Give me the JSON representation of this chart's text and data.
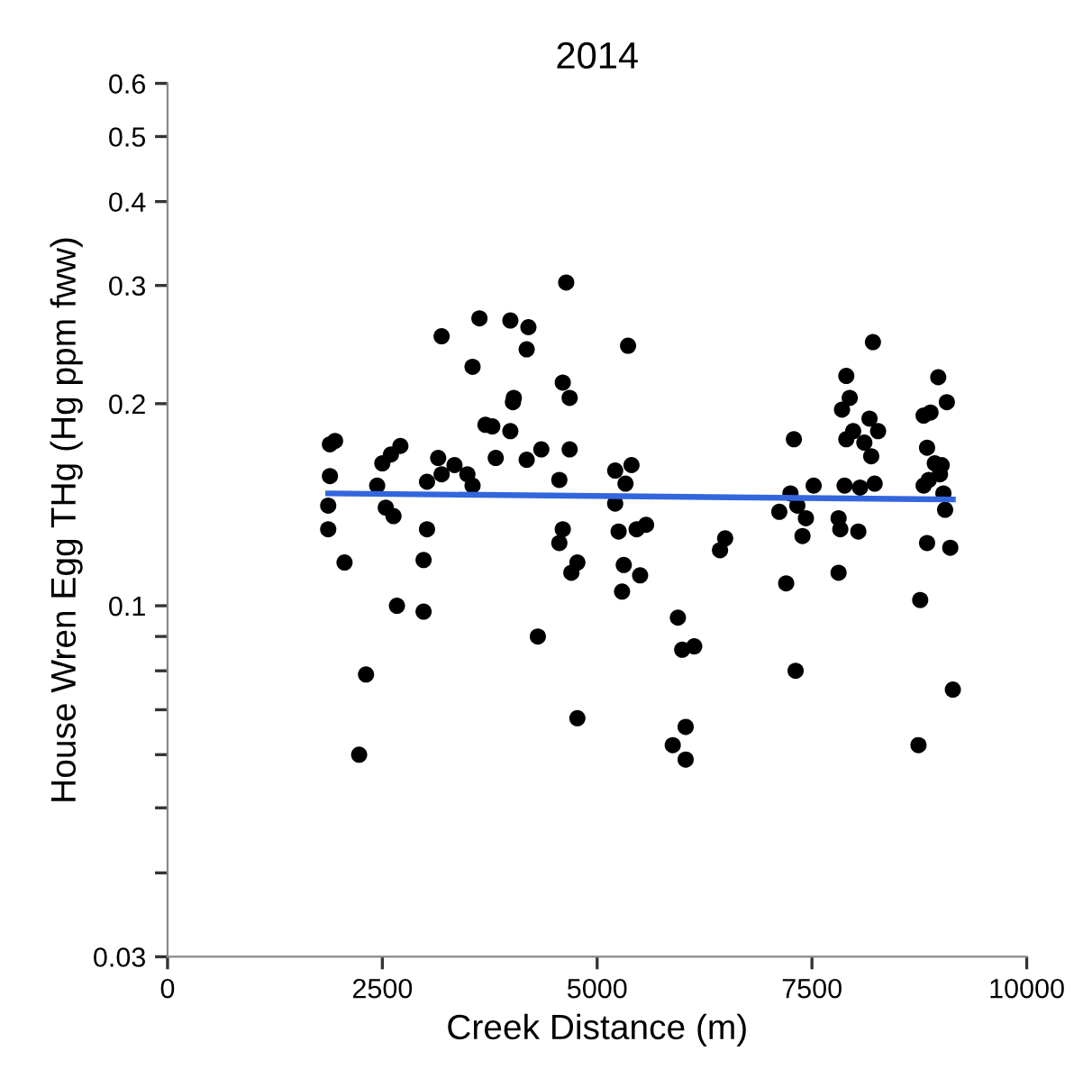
{
  "chart_data": {
    "type": "scatter",
    "title": "2014",
    "xlabel": "Creek Distance (m)",
    "ylabel": "House Wren Egg THg (Hg ppm fww)",
    "log": "y",
    "grid": false,
    "xlim": [
      0,
      10000
    ],
    "xticks": [
      0,
      2500,
      5000,
      7500,
      10000
    ],
    "ylim": [
      0.03,
      0.6
    ],
    "yticks": [
      0.03,
      {
        "value": 0.04,
        "label": null
      },
      {
        "value": 0.05,
        "label": null
      },
      {
        "value": 0.06,
        "label": null
      },
      {
        "value": 0.07,
        "label": null
      },
      {
        "value": 0.08,
        "label": null
      },
      {
        "value": 0.09,
        "label": null
      },
      0.1,
      0.2,
      0.3,
      0.4,
      0.5,
      0.6
    ],
    "series": [
      {
        "color": "#000000",
        "marker": "circle",
        "x": [
          4640,
          3630,
          3990,
          4200,
          3190,
          5360,
          4180,
          3550,
          4600,
          4680,
          4030,
          4020,
          3700,
          3780,
          3990,
          1890,
          1950,
          2710,
          2600,
          2500,
          3150,
          3820,
          4180,
          4350,
          4680,
          3340,
          3190,
          3490,
          3020,
          3550,
          1890,
          4560,
          2440,
          5210,
          5400,
          5330,
          1870,
          5210,
          2540,
          2630,
          1870,
          3020,
          4600,
          4560,
          5250,
          5460,
          5570,
          2060,
          2980,
          4770,
          4700,
          5310,
          5500,
          5290,
          2670,
          2980,
          4310,
          2310,
          4770,
          2230,
          8210,
          7900,
          8970,
          7940,
          7850,
          9070,
          8800,
          8880,
          8170,
          8270,
          7980,
          7900,
          8110,
          8190,
          7290,
          8840,
          8930,
          9010,
          8990,
          8860,
          8800,
          7520,
          7880,
          8230,
          8060,
          7250,
          9030,
          7120,
          7330,
          7430,
          7810,
          9050,
          7390,
          7830,
          8040,
          6490,
          6430,
          8840,
          9110,
          7200,
          7810,
          8760,
          5940,
          5990,
          6130,
          7310,
          9140,
          6030,
          5880,
          6030,
          8740
        ],
        "values": [
          0.303,
          0.268,
          0.266,
          0.26,
          0.252,
          0.244,
          0.241,
          0.227,
          0.215,
          0.204,
          0.204,
          0.201,
          0.186,
          0.185,
          0.182,
          0.174,
          0.176,
          0.173,
          0.168,
          0.163,
          0.166,
          0.166,
          0.165,
          0.171,
          0.171,
          0.162,
          0.157,
          0.157,
          0.153,
          0.151,
          0.156,
          0.154,
          0.151,
          0.159,
          0.162,
          0.152,
          0.141,
          0.142,
          0.14,
          0.136,
          0.13,
          0.13,
          0.13,
          0.124,
          0.129,
          0.13,
          0.132,
          0.116,
          0.117,
          0.116,
          0.112,
          0.115,
          0.111,
          0.105,
          0.1,
          0.098,
          0.09,
          0.079,
          0.068,
          0.06,
          0.247,
          0.22,
          0.219,
          0.204,
          0.196,
          0.201,
          0.192,
          0.194,
          0.19,
          0.182,
          0.182,
          0.177,
          0.175,
          0.167,
          0.177,
          0.172,
          0.163,
          0.162,
          0.157,
          0.154,
          0.151,
          0.151,
          0.151,
          0.152,
          0.15,
          0.147,
          0.147,
          0.138,
          0.141,
          0.135,
          0.135,
          0.139,
          0.127,
          0.13,
          0.129,
          0.126,
          0.121,
          0.124,
          0.122,
          0.108,
          0.112,
          0.102,
          0.096,
          0.086,
          0.087,
          0.08,
          0.075,
          0.066,
          0.062,
          0.059,
          0.062
        ]
      },
      {
        "type": "line",
        "color": "#3366dd",
        "line_style": "solid",
        "x": [
          1870,
          9140
        ],
        "values": [
          0.147,
          0.144
        ]
      }
    ]
  }
}
